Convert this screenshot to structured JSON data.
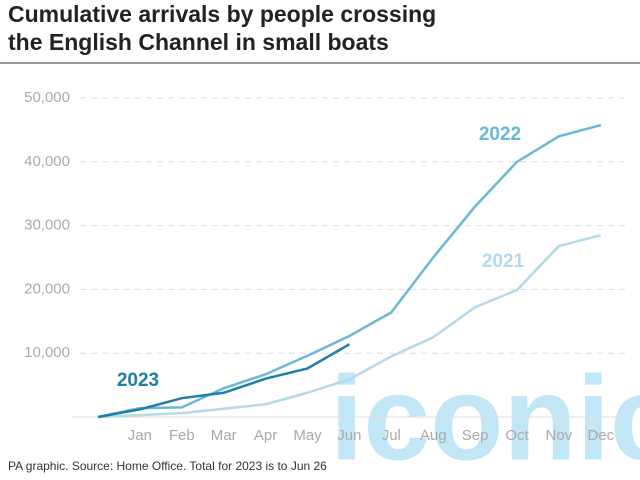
{
  "chart_data": {
    "type": "line",
    "title": [
      "Cumulative arrivals by people crossing",
      "the English Channel in small boats"
    ],
    "footnote": "PA graphic. Source: Home Office. Total for 2023 is to Jun 26",
    "watermark": "iconic",
    "categories": [
      null,
      "Jan",
      "Feb",
      "Mar",
      "Apr",
      "May",
      "Jun",
      "Jul",
      "Aug",
      "Sep",
      "Oct",
      "Nov",
      "Dec"
    ],
    "series": [
      {
        "name": "2021",
        "color": "#b5d9e8",
        "values": [
          0,
          300,
          600,
          1300,
          2000,
          3800,
          5900,
          9500,
          12500,
          17200,
          19900,
          26800,
          28500
        ]
      },
      {
        "name": "2022",
        "color": "#6bb8d6",
        "values": [
          0,
          1400,
          1500,
          4500,
          6700,
          9600,
          12700,
          16400,
          25000,
          33000,
          40000,
          44000,
          45750
        ]
      },
      {
        "name": "2023",
        "color": "#1f7fa6",
        "values": [
          0,
          1200,
          2950,
          3800,
          6000,
          7600,
          11400,
          null,
          null,
          null,
          null,
          null,
          null
        ]
      }
    ],
    "ylim": [
      0,
      50000
    ],
    "yticks": [
      {
        "value": 10000,
        "label": "10,000"
      },
      {
        "value": 20000,
        "label": "20,000"
      },
      {
        "value": 30000,
        "label": "30,000"
      },
      {
        "value": 40000,
        "label": "40,000"
      },
      {
        "value": 50000,
        "label": "50,000"
      }
    ],
    "grid": true
  }
}
